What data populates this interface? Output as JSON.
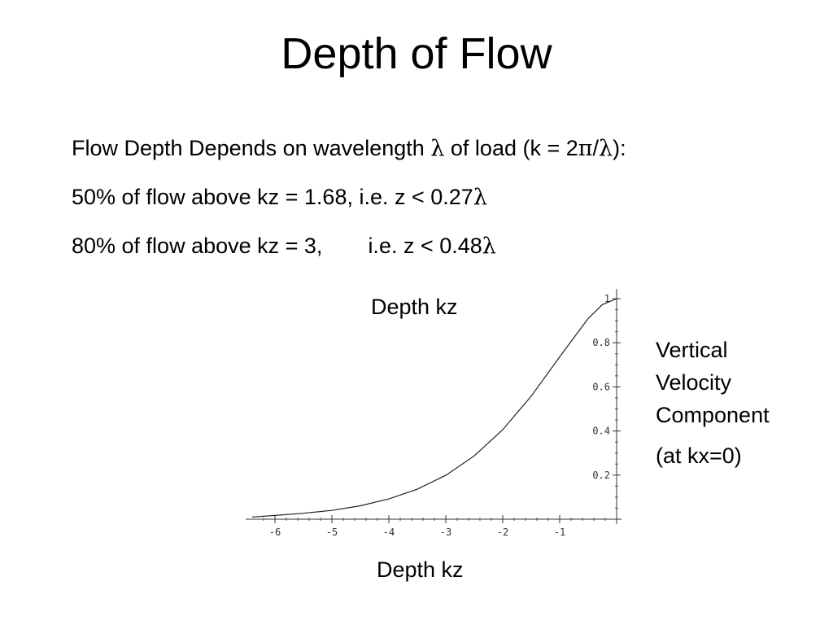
{
  "slide": {
    "title": "Depth of Flow",
    "bullets": {
      "line1_pre": "Flow Depth Depends on wavelength ",
      "line1_lambda1": "λ",
      "line1_mid": " of load (k = 2",
      "line1_pi": "π",
      "line1_slash": "/",
      "line1_lambda2": "λ",
      "line1_post": "):",
      "line2_pre": "50% of flow above kz = 1.68, i.e. z < 0.27",
      "line2_lambda": "λ",
      "line3_a": "80% of flow above kz = 3,",
      "line3_b": "i.e. z < 0.48",
      "line3_lambda": "λ"
    },
    "label_top": "Depth kz",
    "label_bottom": "Depth kz",
    "side_label": {
      "line1": "Vertical",
      "line2": "Velocity",
      "line3": "Component",
      "line4": "(at kx=0)"
    }
  },
  "chart_data": {
    "type": "line",
    "xlabel": "Depth kz",
    "ylabel": "Vertical Velocity Component (at kx=0)",
    "xlim": [
      -6.4,
      0
    ],
    "ylim": [
      0,
      1
    ],
    "x_ticks": [
      -6,
      -5,
      -4,
      -3,
      -2,
      -1
    ],
    "x_tick_labels": [
      "-6",
      "-5",
      "-4",
      "-3",
      "-2",
      "-1"
    ],
    "y_ticks": [
      0.2,
      0.4,
      0.6,
      0.8,
      1
    ],
    "y_tick_labels": [
      "0.2",
      "0.4",
      "0.6",
      "0.8",
      "1"
    ],
    "grid": false,
    "line_color": "#222222",
    "series": [
      {
        "x": [
          -6.4,
          -6.0,
          -5.5,
          -5.0,
          -4.5,
          -4.0,
          -3.5,
          -3.0,
          -2.5,
          -2.0,
          -1.5,
          -1.0,
          -0.5,
          -0.25,
          0
        ],
        "values": [
          0.01,
          0.017,
          0.027,
          0.04,
          0.061,
          0.092,
          0.136,
          0.199,
          0.287,
          0.406,
          0.558,
          0.736,
          0.91,
          0.973,
          1.0
        ]
      }
    ]
  }
}
